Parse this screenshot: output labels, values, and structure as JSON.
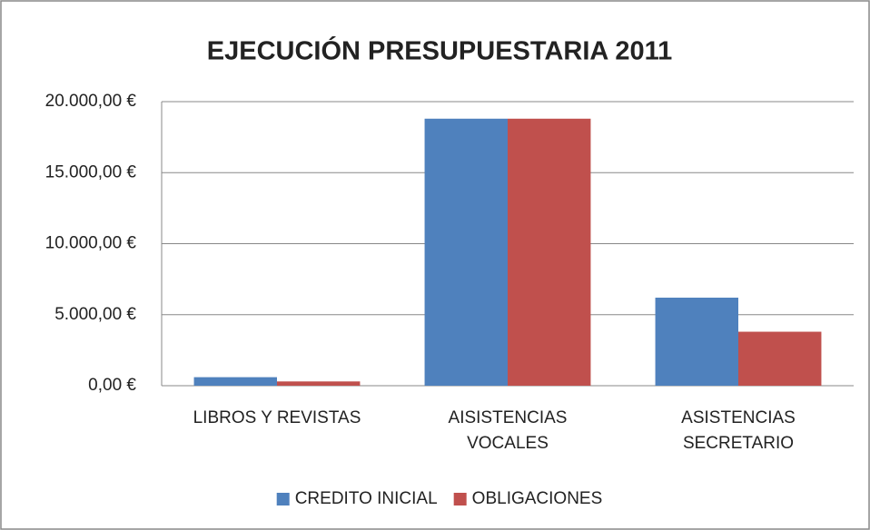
{
  "chart_data": {
    "type": "bar",
    "title": "EJECUCIÓN PRESUPUESTARIA 2011",
    "categories": [
      "LIBROS Y REVISTAS",
      "AISISTENCIAS VOCALES",
      "ASISTENCIAS SECRETARIO"
    ],
    "series": [
      {
        "name": "CREDITO INICIAL",
        "color": "#4f81bd",
        "values": [
          600,
          18800,
          6200
        ]
      },
      {
        "name": "OBLIGACIONES",
        "color": "#c0504d",
        "values": [
          300,
          18800,
          3800
        ]
      }
    ],
    "ylim": [
      0,
      20000
    ],
    "yticks": [
      {
        "value": 0,
        "label": "0,00 €"
      },
      {
        "value": 5000,
        "label": "5.000,00 €"
      },
      {
        "value": 10000,
        "label": "10.000,00 €"
      },
      {
        "value": 15000,
        "label": "15.000,00 €"
      },
      {
        "value": 20000,
        "label": "20.000,00 €"
      }
    ],
    "grid": true,
    "legend": "bottom"
  }
}
